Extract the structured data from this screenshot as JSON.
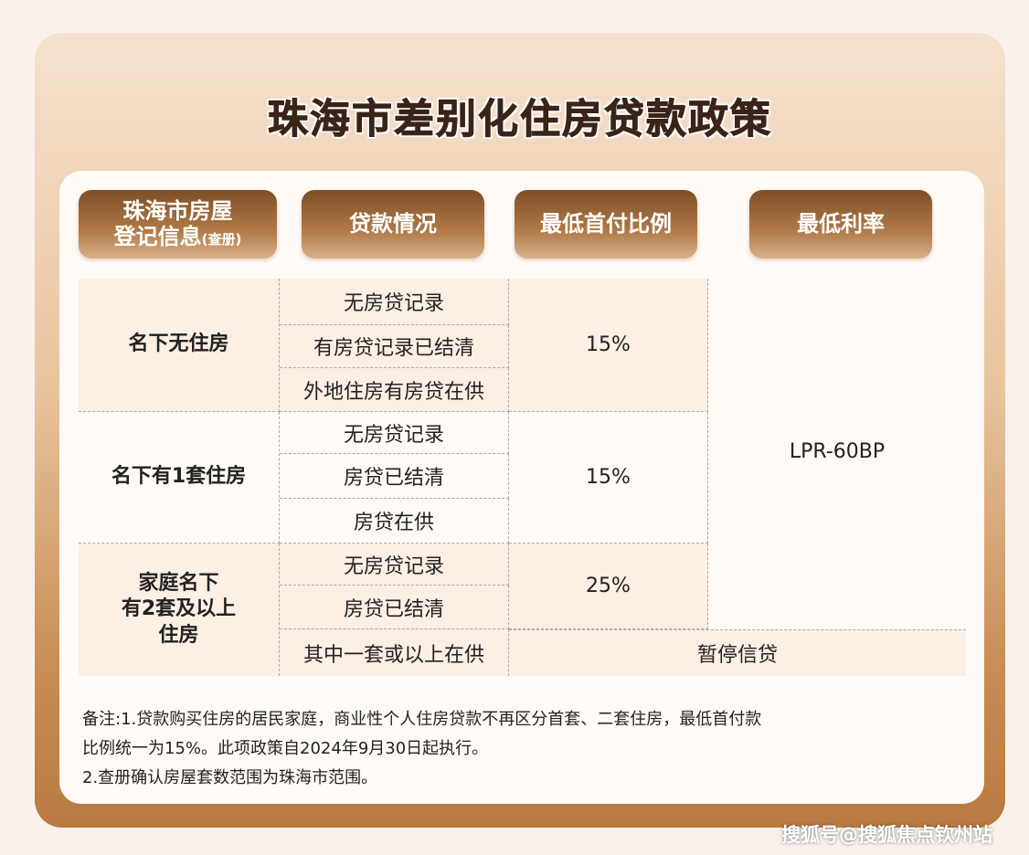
{
  "title": "珠海市差别化住房贷款政策",
  "headers": {
    "col1_line1": "珠海市房屋",
    "col1_line2": "登记信息",
    "col1_suffix": "(查册)",
    "col2": "贷款情况",
    "col3": "最低首付比例",
    "col4": "最低利率"
  },
  "groups": [
    {
      "label": "名下无住房",
      "loans": [
        "无房贷记录",
        "有房贷记录已结清",
        "外地住房有房贷在供"
      ],
      "down_payment": "15%"
    },
    {
      "label": "名下有1套住房",
      "loans": [
        "无房贷记录",
        "房贷已结清",
        "房贷在供"
      ],
      "down_payment": "15%"
    },
    {
      "label_lines": [
        "家庭名下",
        "有2套及以上",
        "住房"
      ],
      "loans": [
        "无房贷记录",
        "房贷已结清",
        "其中一套或以上在供"
      ],
      "down_payment": "25%",
      "suspended": "暂停信贷"
    }
  ],
  "rate": "LPR-60BP",
  "notes": [
    "备注:1.贷款购买住房的居民家庭，商业性个人住房贷款不再区分首套、二套住房，最低首付款",
    "比例统一为15%。此项政策自2024年9月30日起执行。",
    "2.查册确认房屋套数范围为珠海市范围。"
  ],
  "watermark": "搜狐号@搜狐焦点钦州站"
}
